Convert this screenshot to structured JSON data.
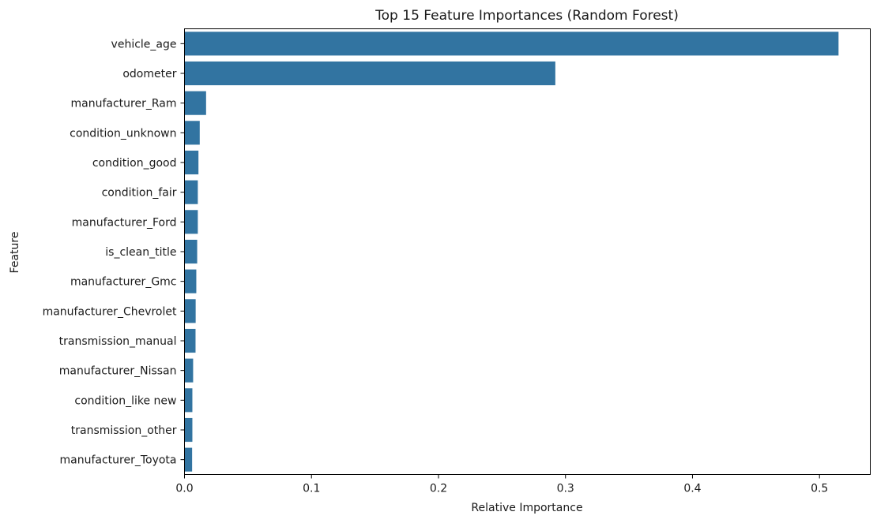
{
  "chart_data": {
    "type": "bar",
    "orientation": "horizontal",
    "title": "Top 15 Feature Importances (Random Forest)",
    "xlabel": "Relative Importance",
    "ylabel": "Feature",
    "xlim": [
      0,
      0.54
    ],
    "xticks": [
      0.0,
      0.1,
      0.2,
      0.3,
      0.4,
      0.5
    ],
    "xtick_labels": [
      "0.0",
      "0.1",
      "0.2",
      "0.3",
      "0.4",
      "0.5"
    ],
    "grid": false,
    "bar_color": "#3274a1",
    "categories": [
      "vehicle_age",
      "odometer",
      "manufacturer_Ram",
      "condition_unknown",
      "condition_good",
      "condition_fair",
      "manufacturer_Ford",
      "is_clean_title",
      "manufacturer_Gmc",
      "manufacturer_Chevrolet",
      "transmission_manual",
      "manufacturer_Nissan",
      "condition_like new",
      "transmission_other",
      "manufacturer_Toyota"
    ],
    "values": [
      0.515,
      0.292,
      0.017,
      0.012,
      0.011,
      0.0105,
      0.0105,
      0.01,
      0.0093,
      0.0088,
      0.0087,
      0.0068,
      0.0062,
      0.0062,
      0.006
    ]
  }
}
